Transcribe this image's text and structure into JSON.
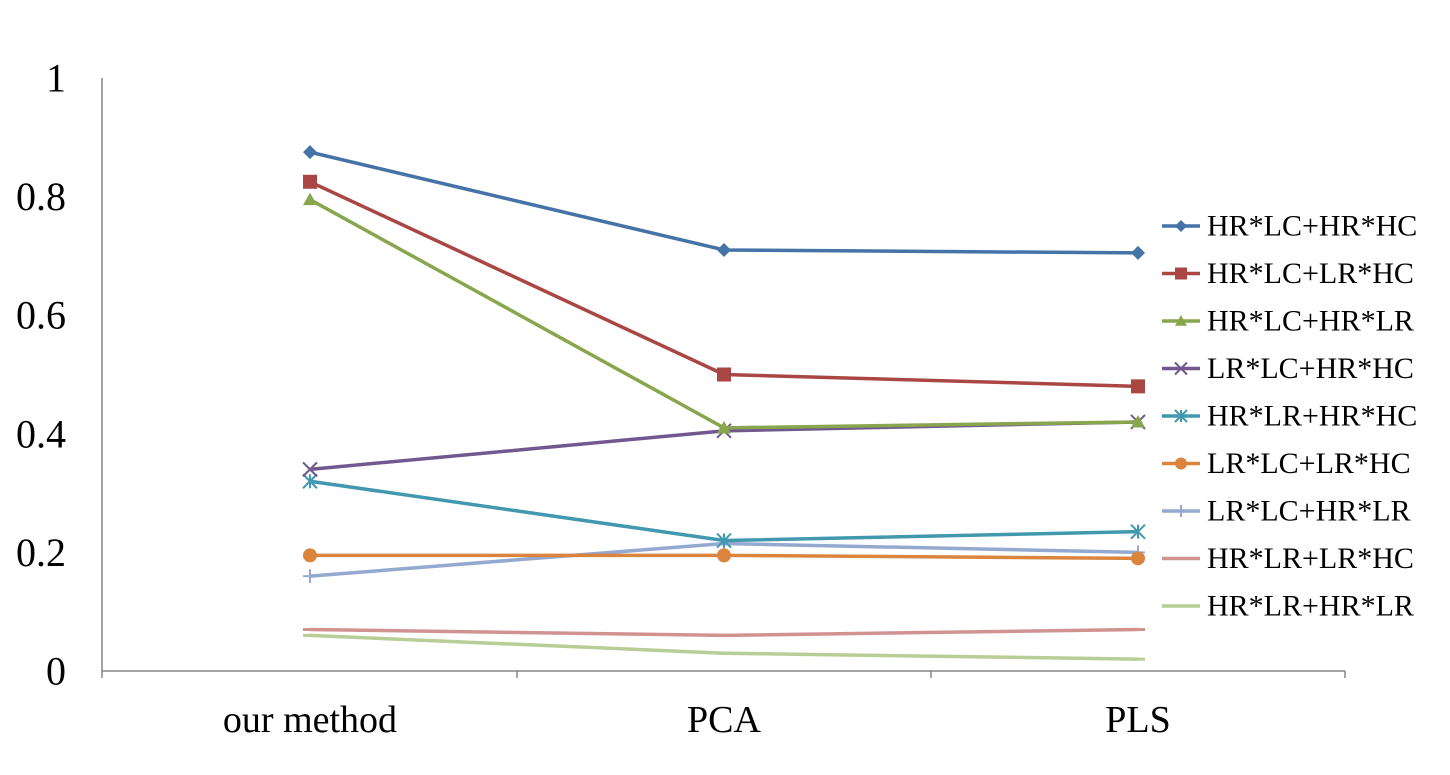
{
  "chart_data": {
    "type": "line",
    "title": "",
    "xlabel": "",
    "ylabel": "",
    "categories": [
      "our method",
      "PCA",
      "PLS"
    ],
    "ylim": [
      0,
      1
    ],
    "yticks": [
      "0",
      "0.2",
      "0.4",
      "0.6",
      "0.8",
      "1"
    ],
    "yticks_values": [
      0,
      0.2,
      0.4,
      0.6,
      0.8,
      1
    ],
    "grid": false,
    "legend_position": "right",
    "series": [
      {
        "name": "HR*LC+HR*HC",
        "values": [
          0.875,
          0.71,
          0.705
        ],
        "color": "#4572A7",
        "marker": "diamond"
      },
      {
        "name": "HR*LC+LR*HC",
        "values": [
          0.825,
          0.5,
          0.48
        ],
        "color": "#AA4643",
        "marker": "square"
      },
      {
        "name": "HR*LC+HR*LR",
        "values": [
          0.795,
          0.41,
          0.42
        ],
        "color": "#89A54E",
        "marker": "triangle"
      },
      {
        "name": "LR*LC+HR*HC",
        "values": [
          0.34,
          0.405,
          0.42
        ],
        "color": "#71588F",
        "marker": "x"
      },
      {
        "name": "HR*LR+HR*HC",
        "values": [
          0.32,
          0.22,
          0.235
        ],
        "color": "#4198AF",
        "marker": "star"
      },
      {
        "name": "LR*LC+LR*HC",
        "values": [
          0.195,
          0.195,
          0.19
        ],
        "color": "#DB843D",
        "marker": "circle"
      },
      {
        "name": "LR*LC+HR*LR",
        "values": [
          0.16,
          0.215,
          0.2
        ],
        "color": "#93A9CF",
        "marker": "plus"
      },
      {
        "name": "HR*LR+LR*HC",
        "values": [
          0.07,
          0.06,
          0.07
        ],
        "color": "#D19392",
        "marker": "dash"
      },
      {
        "name": "HR*LR+HR*LR",
        "values": [
          0.06,
          0.03,
          0.02
        ],
        "color": "#B9CD96",
        "marker": "dash"
      }
    ]
  }
}
